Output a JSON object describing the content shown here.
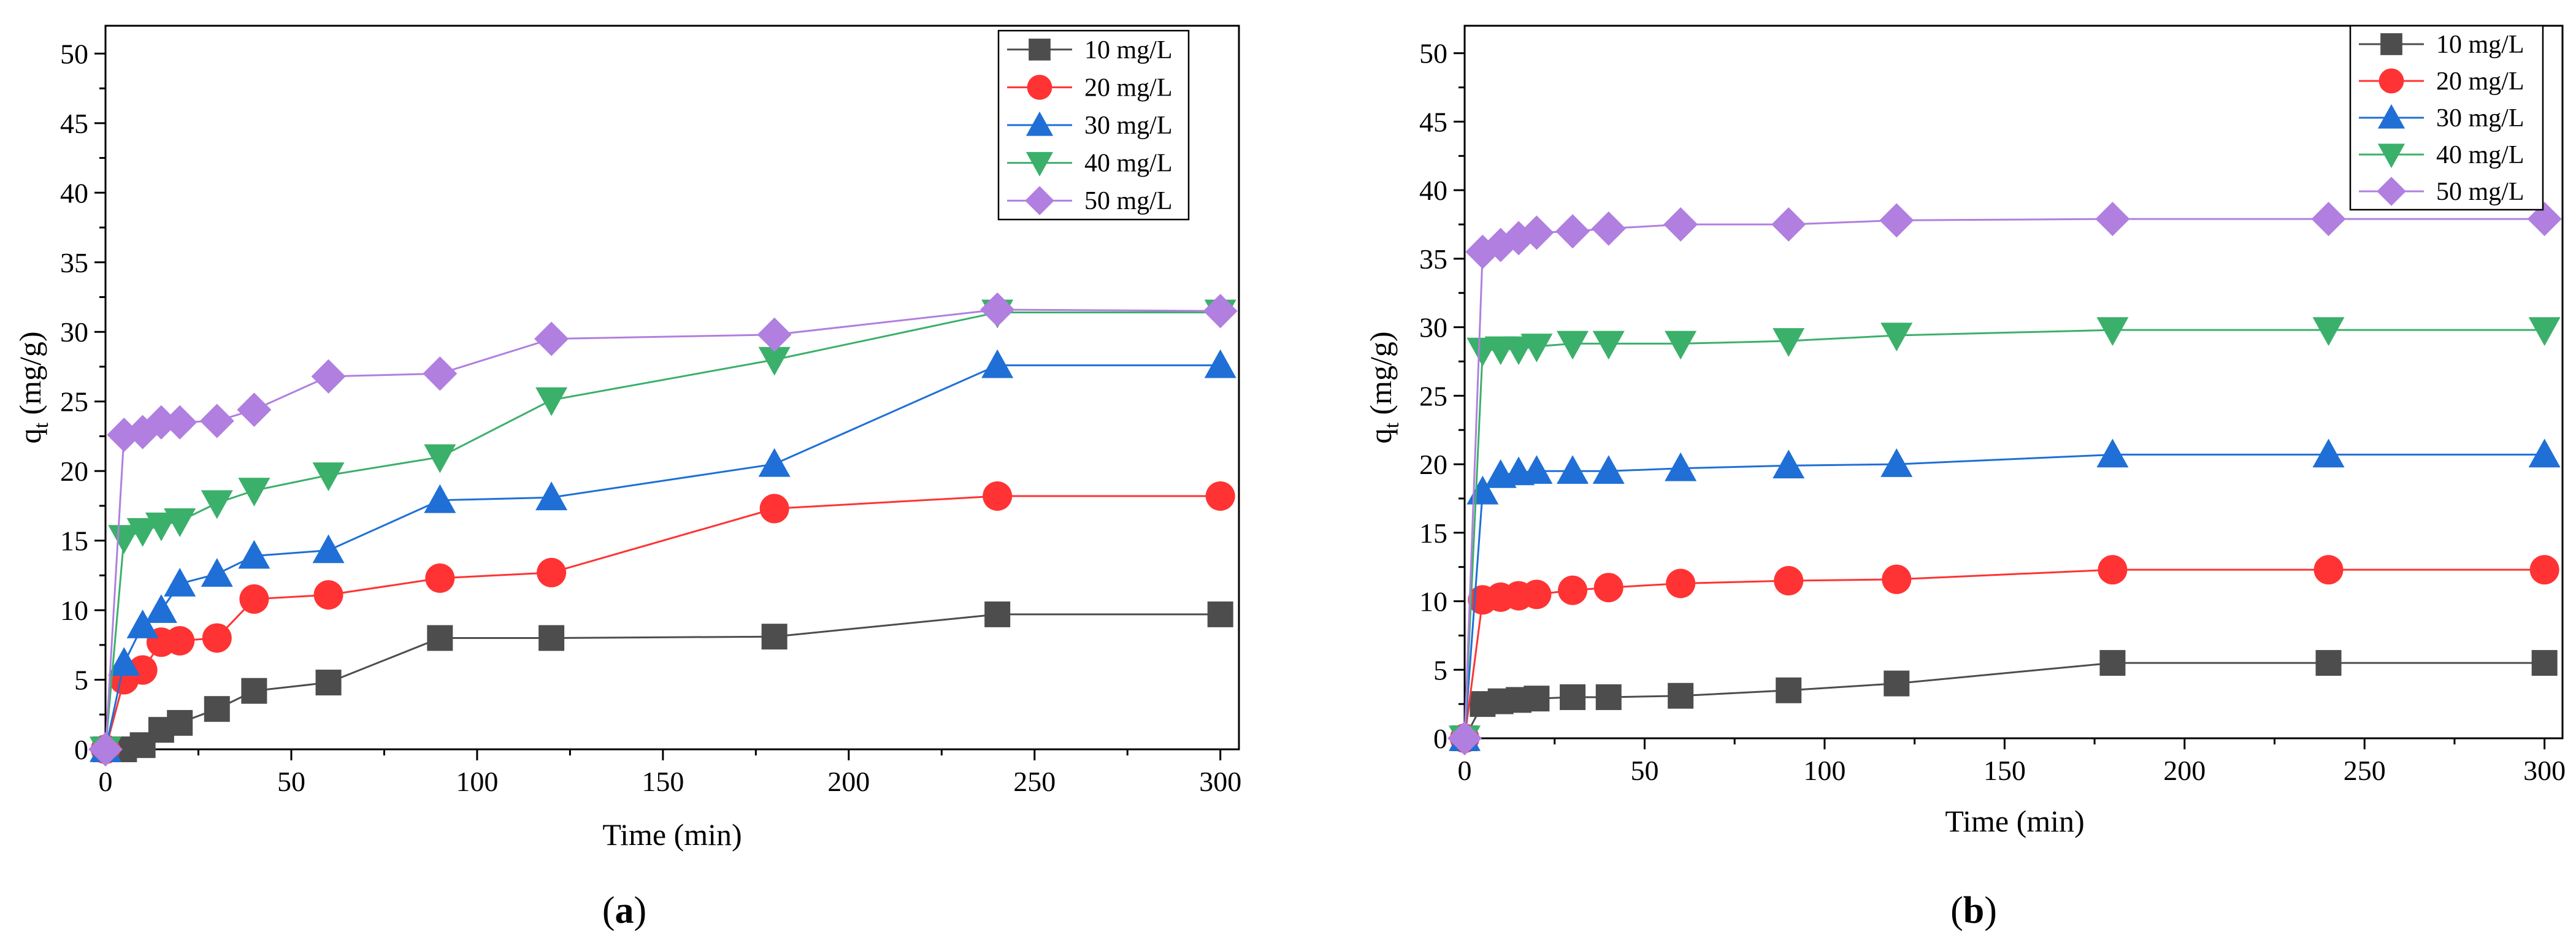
{
  "chart_data": [
    {
      "type": "line",
      "panel_label": "(a)",
      "xlabel": "Time (min)",
      "ylabel_main": "q",
      "ylabel_sub": "t",
      "ylabel_unit": " (mg/g)",
      "xlim": [
        0,
        305
      ],
      "ylim": [
        0,
        52
      ],
      "xticks": [
        0,
        50,
        100,
        150,
        200,
        250,
        300
      ],
      "yticks": [
        0,
        5,
        10,
        15,
        20,
        25,
        30,
        35,
        40,
        45,
        50
      ],
      "legend_position": "top-right",
      "grid": false,
      "series": [
        {
          "name": "10 mg/L",
          "color": "#4d4d4d",
          "marker": "square",
          "x": [
            0,
            5,
            10,
            15,
            20,
            30,
            40,
            60,
            90,
            120,
            180,
            240,
            300
          ],
          "y": [
            0,
            0,
            0.3,
            1.4,
            1.9,
            2.9,
            4.2,
            4.8,
            8.0,
            8.0,
            8.1,
            9.7,
            9.7
          ]
        },
        {
          "name": "20 mg/L",
          "color": "#ff3333",
          "marker": "circle",
          "x": [
            0,
            5,
            10,
            15,
            20,
            30,
            40,
            60,
            90,
            120,
            180,
            240,
            300
          ],
          "y": [
            0,
            5.0,
            5.7,
            7.7,
            7.8,
            8.0,
            10.8,
            11.1,
            12.3,
            12.7,
            17.3,
            18.2,
            18.2
          ]
        },
        {
          "name": "30 mg/L",
          "color": "#1f6fd6",
          "marker": "triangle-up",
          "x": [
            0,
            5,
            10,
            15,
            20,
            30,
            40,
            60,
            90,
            120,
            180,
            240,
            300
          ],
          "y": [
            0,
            6.2,
            8.9,
            10.0,
            11.9,
            12.6,
            13.9,
            14.3,
            17.9,
            18.1,
            20.5,
            27.6,
            27.6
          ]
        },
        {
          "name": "40 mg/L",
          "color": "#3bb06a",
          "marker": "triangle-down",
          "x": [
            0,
            5,
            10,
            15,
            20,
            30,
            40,
            60,
            90,
            120,
            180,
            240,
            300
          ],
          "y": [
            0,
            15.2,
            15.7,
            16.1,
            16.4,
            17.7,
            18.6,
            19.7,
            21.0,
            25.1,
            28.0,
            31.4,
            31.4
          ]
        },
        {
          "name": "50 mg/L",
          "color": "#b07fe0",
          "marker": "diamond",
          "x": [
            0,
            5,
            10,
            15,
            20,
            30,
            40,
            60,
            90,
            120,
            180,
            240,
            300
          ],
          "y": [
            0,
            22.6,
            22.8,
            23.5,
            23.5,
            23.6,
            24.4,
            26.8,
            27.0,
            29.5,
            29.8,
            31.6,
            31.5
          ]
        }
      ]
    },
    {
      "type": "line",
      "panel_label": "(b)",
      "xlabel": "Time (min)",
      "ylabel_main": "q",
      "ylabel_sub": "t",
      "ylabel_unit": " (mg/g)",
      "xlim": [
        0,
        305
      ],
      "ylim": [
        0,
        52
      ],
      "xticks": [
        0,
        50,
        100,
        150,
        200,
        250,
        300
      ],
      "yticks": [
        0,
        5,
        10,
        15,
        20,
        25,
        30,
        35,
        40,
        45,
        50
      ],
      "legend_position": "top-right",
      "grid": false,
      "series": [
        {
          "name": "10 mg/L",
          "color": "#4d4d4d",
          "marker": "square",
          "x": [
            0,
            5,
            10,
            15,
            20,
            30,
            40,
            60,
            90,
            120,
            180,
            240,
            300
          ],
          "y": [
            0,
            2.5,
            2.7,
            2.8,
            2.9,
            3.0,
            3.0,
            3.1,
            3.5,
            4.0,
            5.5,
            5.5,
            5.5
          ]
        },
        {
          "name": "20 mg/L",
          "color": "#ff3333",
          "marker": "circle",
          "x": [
            0,
            5,
            10,
            15,
            20,
            30,
            40,
            60,
            90,
            120,
            180,
            240,
            300
          ],
          "y": [
            0,
            10.1,
            10.3,
            10.4,
            10.5,
            10.8,
            11.0,
            11.3,
            11.5,
            11.6,
            12.3,
            12.3,
            12.3
          ]
        },
        {
          "name": "30 mg/L",
          "color": "#1f6fd6",
          "marker": "triangle-up",
          "x": [
            0,
            5,
            10,
            15,
            20,
            30,
            40,
            60,
            90,
            120,
            180,
            240,
            300
          ],
          "y": [
            0,
            18.0,
            19.2,
            19.4,
            19.5,
            19.5,
            19.5,
            19.7,
            19.9,
            20.0,
            20.7,
            20.7,
            20.7
          ]
        },
        {
          "name": "40 mg/L",
          "color": "#3bb06a",
          "marker": "triangle-down",
          "x": [
            0,
            5,
            10,
            15,
            20,
            30,
            40,
            60,
            90,
            120,
            180,
            240,
            300
          ],
          "y": [
            0,
            28.3,
            28.4,
            28.4,
            28.6,
            28.8,
            28.8,
            28.8,
            29.0,
            29.4,
            29.8,
            29.8,
            29.8
          ]
        },
        {
          "name": "50 mg/L",
          "color": "#b07fe0",
          "marker": "diamond",
          "x": [
            0,
            5,
            10,
            15,
            20,
            30,
            40,
            60,
            90,
            120,
            180,
            240,
            300
          ],
          "y": [
            0,
            35.5,
            36.0,
            36.5,
            36.9,
            37.0,
            37.2,
            37.5,
            37.5,
            37.8,
            37.9,
            37.9,
            37.9
          ]
        }
      ]
    }
  ]
}
